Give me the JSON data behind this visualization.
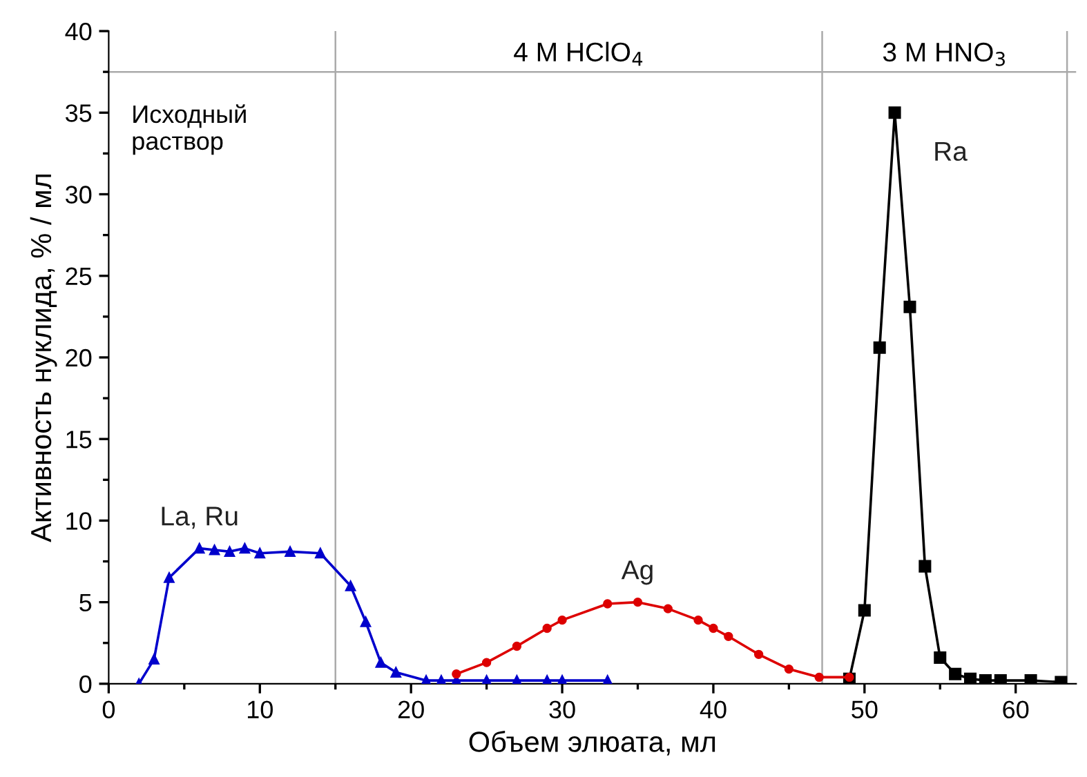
{
  "chart_data": {
    "type": "line",
    "xlabel": "Объем элюата, мл",
    "ylabel": "Активность нуклида, % / мл",
    "xlim": [
      0,
      64
    ],
    "ylim": [
      0,
      40
    ],
    "xticks": [
      0,
      {
        "value": 5,
        "label": null
      },
      10,
      {
        "value": 15,
        "label": null
      },
      20,
      {
        "value": 25,
        "label": null
      },
      30,
      {
        "value": 35,
        "label": null
      },
      40,
      {
        "value": 45,
        "label": null
      },
      50,
      {
        "value": 55,
        "label": null
      },
      60
    ],
    "yticks": [
      0,
      {
        "value": 2.5,
        "label": null
      },
      5,
      {
        "value": 7.5,
        "label": null
      },
      10,
      {
        "value": 12.5,
        "label": null
      },
      15,
      {
        "value": 17.5,
        "label": null
      },
      20,
      {
        "value": 22.5,
        "label": null
      },
      25,
      {
        "value": 27.5,
        "label": null
      },
      30,
      {
        "value": 32.5,
        "label": null
      },
      35,
      {
        "value": 37.5,
        "label": null
      },
      40
    ],
    "grid": false,
    "legend": false,
    "line_style": "solid",
    "series": [
      {
        "name": "La, Ru",
        "color": "#0000cc",
        "marker": "triangle",
        "x": [
          2,
          3,
          4,
          6,
          7,
          8,
          9,
          10,
          12,
          14,
          16,
          17,
          18,
          19,
          21,
          22,
          23,
          25,
          27,
          29,
          30,
          33
        ],
        "values": [
          0,
          1.5,
          6.5,
          8.3,
          8.2,
          8.1,
          8.3,
          8.0,
          8.1,
          8.0,
          6.0,
          3.8,
          1.3,
          0.7,
          0.2,
          0.2,
          0.2,
          0.2,
          0.2,
          0.2,
          0.2,
          0.2
        ]
      },
      {
        "name": "Ag",
        "color": "#dd0000",
        "marker": "circle",
        "x": [
          23,
          25,
          27,
          29,
          30,
          33,
          35,
          37,
          39,
          40,
          41,
          43,
          45,
          47,
          49
        ],
        "values": [
          0.6,
          1.3,
          2.3,
          3.4,
          3.9,
          4.9,
          5.0,
          4.6,
          3.9,
          3.4,
          2.9,
          1.8,
          0.9,
          0.4,
          0.4
        ]
      },
      {
        "name": "Ra",
        "color": "#000000",
        "marker": "square",
        "x": [
          49,
          50,
          51,
          52,
          53,
          54,
          55,
          56,
          57,
          58,
          59,
          61,
          63
        ],
        "values": [
          0.3,
          4.5,
          20.6,
          35,
          23.1,
          7.2,
          1.6,
          0.6,
          0.3,
          0.2,
          0.2,
          0.2,
          0.1
        ]
      }
    ],
    "ref_lines": [
      {
        "axis": "x",
        "value": 15,
        "color": "#aaaaaa"
      },
      {
        "axis": "x",
        "value": 47.2,
        "color": "#aaaaaa"
      },
      {
        "axis": "x",
        "value": 63.4,
        "color": "#aaaaaa"
      },
      {
        "axis": "y",
        "value": 37.5,
        "color": "#aaaaaa"
      }
    ],
    "annotations": [
      "Исходный\nраствор",
      "4 M HClO$_{4}$",
      "3 M HNO$_{3}$"
    ]
  }
}
